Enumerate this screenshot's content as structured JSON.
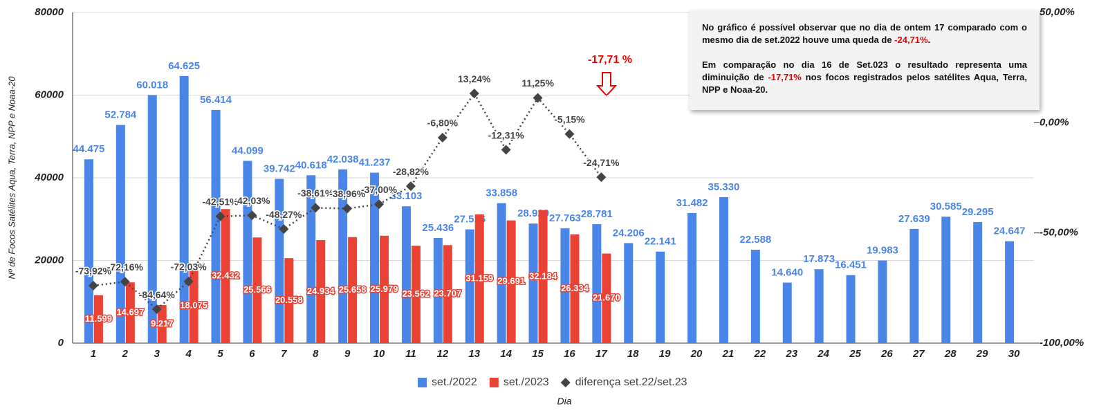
{
  "chart_data": {
    "type": "combo",
    "categories": [
      "1",
      "2",
      "3",
      "4",
      "5",
      "6",
      "7",
      "8",
      "9",
      "10",
      "11",
      "12",
      "13",
      "14",
      "15",
      "16",
      "17",
      "18",
      "19",
      "20",
      "21",
      "22",
      "23",
      "24",
      "25",
      "26",
      "27",
      "28",
      "29",
      "30"
    ],
    "series": [
      {
        "name": "set./2022",
        "kind": "bar",
        "color": "#4a86e8",
        "values": [
          44475,
          52784,
          60018,
          64625,
          56414,
          44099,
          39742,
          40618,
          42038,
          41237,
          33103,
          25436,
          27516,
          33858,
          28929,
          27763,
          28781,
          24206,
          22141,
          31482,
          35330,
          22588,
          14640,
          17873,
          16451,
          19983,
          27639,
          30585,
          29295,
          24647
        ],
        "value_labels": [
          "44.475",
          "52.784",
          "60.018",
          "64.625",
          "56.414",
          "44.099",
          "39.742",
          "40.618",
          "42.038",
          "41.237",
          "33.103",
          "25.436",
          "27.516",
          "33.858",
          "28.929",
          "27.763",
          "28.781",
          "24.206",
          "22.141",
          "31.482",
          "35.330",
          "22.588",
          "14.640",
          "17.873",
          "16.451",
          "19.983",
          "27.639",
          "30.585",
          "29.295",
          "24.647"
        ]
      },
      {
        "name": "set./2023",
        "kind": "bar",
        "color": "#ea4335",
        "values": [
          11599,
          14697,
          9217,
          18075,
          32432,
          25566,
          20558,
          24934,
          25658,
          25979,
          23562,
          23707,
          31159,
          29691,
          32184,
          26334,
          21670,
          null,
          null,
          null,
          null,
          null,
          null,
          null,
          null,
          null,
          null,
          null,
          null,
          null
        ],
        "value_labels": [
          "11.599",
          "14.697",
          "9.217",
          "18.075",
          "32.432",
          "25.566",
          "20.558",
          "24.934",
          "25.658",
          "25.979",
          "23.562",
          "23.707",
          "31.159",
          "29.691",
          "32.184",
          "26.334",
          "21.670",
          null,
          null,
          null,
          null,
          null,
          null,
          null,
          null,
          null,
          null,
          null,
          null,
          null
        ]
      },
      {
        "name": "diferença set.22/set.23",
        "kind": "line",
        "axis": "y2",
        "color": "#444444",
        "values": [
          -73.92,
          -72.16,
          -84.64,
          -72.03,
          -42.51,
          -42.03,
          -48.27,
          -38.61,
          -38.96,
          -37.0,
          -28.82,
          -6.8,
          13.24,
          -12.31,
          11.25,
          -5.15,
          -24.71,
          null,
          null,
          null,
          null,
          null,
          null,
          null,
          null,
          null,
          null,
          null,
          null,
          null
        ],
        "value_labels": [
          "-73,92%",
          "-72,16%",
          "-84,64%",
          "-72,03%",
          "-42,51%",
          "-42,03%",
          "-48,27%",
          "-38,61%",
          "-38,96%",
          "-37,00%",
          "-28,82%",
          "-6,80%",
          "13,24%",
          "-12,31%",
          "11,25%",
          "-5,15%",
          "-24,71%",
          null,
          null,
          null,
          null,
          null,
          null,
          null,
          null,
          null,
          null,
          null,
          null,
          null
        ]
      }
    ],
    "ylim": [
      0,
      80000
    ],
    "yticks": [
      0,
      20000,
      40000,
      60000,
      80000
    ],
    "y2lim": [
      -100,
      50
    ],
    "y2ticks": [
      {
        "value": -100,
        "label": "-100,00%"
      },
      {
        "value": -50,
        "label": "-50,00%"
      },
      {
        "value": 0,
        "label": "0,00%"
      },
      {
        "value": 50,
        "label": "50,00%"
      }
    ],
    "grid": true,
    "legend": "bottom",
    "ylabel": "Nº de Focos Satélites Aqua, Terra, NPP e Noaa-20",
    "xlabel": "Dia",
    "annotation": "-17,71 %",
    "note": {
      "p1": [
        "No gráfico é possível observar que no dia de ontem 17 comparado com o mesmo dia de set.2022  houve uma queda  de ",
        "-24,71%",
        "."
      ],
      "p2": [
        "Em comparação no dia 16 de Set.023 o resultado representa uma diminuição de ",
        "-17,71%",
        " nos focos registrados pelos satélites Aqua, Terra, NPP e Noaa-20."
      ]
    }
  }
}
